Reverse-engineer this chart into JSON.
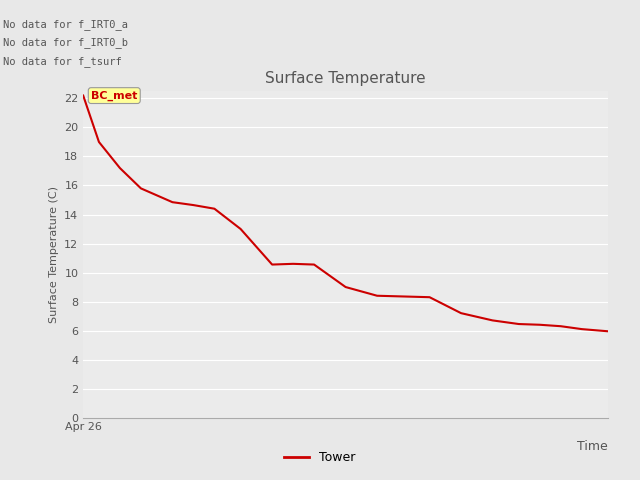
{
  "title": "Surface Temperature",
  "xlabel": "Time",
  "ylabel": "Surface Temperature (C)",
  "ylim": [
    0,
    22.5
  ],
  "yticks": [
    0,
    2,
    4,
    6,
    8,
    10,
    12,
    14,
    16,
    18,
    20,
    22
  ],
  "x_start_label": "Apr 26",
  "line_color": "#cc0000",
  "line_width": 1.5,
  "legend_label": "Tower",
  "no_data_texts": [
    "No data for f_IRT0_a",
    "No data for f_IRT0_b",
    "No data for f_tsurf"
  ],
  "bc_met_label": "BC_met",
  "bc_met_color": "#ffff99",
  "bc_met_text_color": "#cc0000",
  "background_color": "#e8e8e8",
  "plot_bg_color": "#ebebeb",
  "grid_color": "#ffffff",
  "x_values": [
    0,
    0.03,
    0.07,
    0.11,
    0.17,
    0.21,
    0.25,
    0.3,
    0.36,
    0.4,
    0.44,
    0.5,
    0.56,
    0.61,
    0.66,
    0.72,
    0.78,
    0.83,
    0.87,
    0.91,
    0.95,
    1.0
  ],
  "y_values": [
    22.2,
    19.0,
    17.2,
    15.8,
    14.85,
    14.65,
    14.4,
    13.0,
    10.55,
    10.6,
    10.55,
    9.0,
    8.4,
    8.35,
    8.3,
    7.2,
    6.7,
    6.45,
    6.4,
    6.3,
    6.1,
    5.95
  ]
}
